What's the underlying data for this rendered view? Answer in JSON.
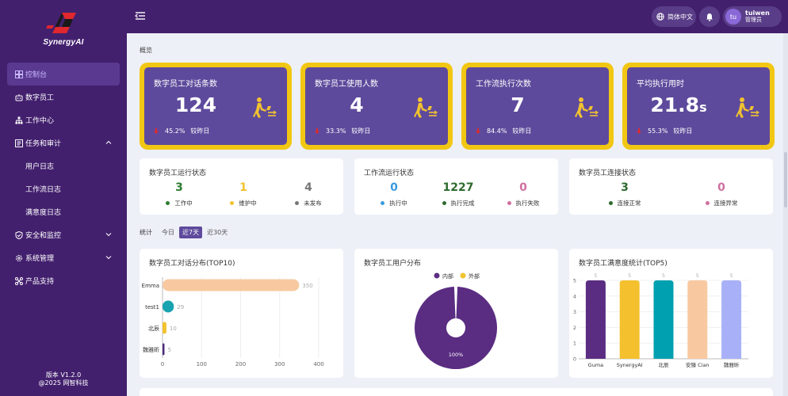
{
  "brand": {
    "name": "SynergyAI"
  },
  "sidebar": {
    "items": [
      {
        "label": "控制台",
        "icon": "dashboard-icon",
        "active": true
      },
      {
        "label": "数字员工",
        "icon": "robot-icon"
      },
      {
        "label": "工作中心",
        "icon": "sitemap-icon"
      },
      {
        "label": "任务和审计",
        "icon": "task-icon",
        "expanded": true
      },
      {
        "label": "用户日志",
        "sub": true
      },
      {
        "label": "工作流日志",
        "sub": true
      },
      {
        "label": "满意度日志",
        "sub": true
      },
      {
        "label": "安全和监控",
        "icon": "shield-icon"
      },
      {
        "label": "系统管理",
        "icon": "gear-icon"
      },
      {
        "label": "产品支持",
        "icon": "support-icon"
      }
    ],
    "version": "版本 V1.2.0",
    "copyright": "@2025 网智科技"
  },
  "topbar": {
    "language": "简体中文",
    "user": {
      "initials": "tu",
      "name": "tuiwen",
      "role": "管理员"
    }
  },
  "overview": {
    "title": "概览",
    "kpis": [
      {
        "title": "数字员工对话条数",
        "value": "124",
        "unit": "",
        "change": "45.2%",
        "compare": "较昨日"
      },
      {
        "title": "数字员工使用人数",
        "value": "4",
        "unit": "",
        "change": "33.3%",
        "compare": "较昨日"
      },
      {
        "title": "工作流执行次数",
        "value": "7",
        "unit": "",
        "change": "84.4%",
        "compare": "较昨日"
      },
      {
        "title": "平均执行用时",
        "value": "21.8",
        "unit": "s",
        "change": "55.3%",
        "compare": "较昨日"
      }
    ]
  },
  "status": {
    "employee_run": {
      "title": "数字员工运行状态",
      "stats": [
        {
          "value": "3",
          "label": "工作中",
          "color": "#2e7d32"
        },
        {
          "value": "1",
          "label": "维护中",
          "color": "#f2c230"
        },
        {
          "value": "4",
          "label": "未发布",
          "color": "#777777"
        }
      ]
    },
    "workflow_run": {
      "title": "工作流运行状态",
      "stats": [
        {
          "value": "0",
          "label": "执行中",
          "color": "#3b9be0"
        },
        {
          "value": "1227",
          "label": "执行完成",
          "color": "#2e6b2e"
        },
        {
          "value": "0",
          "label": "执行失败",
          "color": "#d06fa0"
        }
      ]
    },
    "employee_conn": {
      "title": "数字员工连接状态",
      "stats": [
        {
          "value": "3",
          "label": "连接正常",
          "color": "#2e6b2e"
        },
        {
          "value": "0",
          "label": "连接异常",
          "color": "#d06fa0"
        }
      ]
    }
  },
  "stats_filter": {
    "label": "统计",
    "options": [
      "今日",
      "近7天",
      "近30天"
    ],
    "selected": "近7天"
  },
  "charts": {
    "dialog_top10": {
      "title": "数字员工对话分布(TOP10)"
    },
    "user_dist": {
      "title": "数字员工用户分布"
    },
    "satisfaction_top5": {
      "title": "数字员工满意度统计(TOP5)"
    }
  },
  "chart_data": [
    {
      "type": "bar",
      "orientation": "horizontal",
      "title": "数字员工对话分布(TOP10)",
      "categories": [
        "Emma",
        "test1",
        "北辰",
        "魏雅昕"
      ],
      "values": [
        350,
        29,
        10,
        5
      ],
      "colors": [
        "#f8c9a0",
        "#17a3b0",
        "#f2c230",
        "#4b2a7a"
      ],
      "xlim": [
        0,
        400
      ],
      "xticks": [
        0,
        100,
        200,
        300,
        400
      ],
      "grid": true
    },
    {
      "type": "pie",
      "title": "数字员工用户分布",
      "series": [
        {
          "name": "内部",
          "value": 100,
          "label": "100%",
          "color": "#5a2d82"
        },
        {
          "name": "外部",
          "value": 0,
          "color": "#f2c230"
        }
      ],
      "legend": "top"
    },
    {
      "type": "bar",
      "title": "数字员工满意度统计(TOP5)",
      "categories": [
        "Guma",
        "SynergyAI",
        "北辰",
        "安臻 Cian",
        "魏雅昕"
      ],
      "values": [
        5,
        5,
        5,
        5,
        5
      ],
      "colors": [
        "#5a2d82",
        "#f5c02e",
        "#00a0b0",
        "#f8c9a0",
        "#a8b1f8"
      ],
      "ylim": [
        0,
        5
      ],
      "yticks": [
        0,
        1,
        2,
        3,
        4,
        5
      ],
      "grid": true
    }
  ]
}
